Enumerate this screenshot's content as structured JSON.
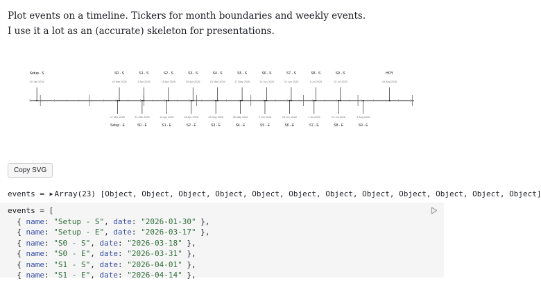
{
  "intro": {
    "line1": "Plot events on a timeline. Tickers for month boundaries and weekly events.",
    "line2": "I use it a lot as an (accurate) skeleton for presentations."
  },
  "timeline": {
    "start_date": "2026-01-26",
    "end_date": "2026-09-02",
    "events_above": [
      {
        "name": "Setup - S",
        "date": "2026-01-30",
        "date_label": "30 Jan 2026"
      },
      {
        "name": "S0 - S",
        "date": "2026-03-18",
        "date_label": "18 Mar 2026"
      },
      {
        "name": "S1 - S",
        "date": "2026-04-01",
        "date_label": "1 Apr 2026"
      },
      {
        "name": "S2 - S",
        "date": "2026-04-15",
        "date_label": "15 Apr 2026"
      },
      {
        "name": "S3 - S",
        "date": "2026-04-29",
        "date_label": "29 Apr 2026"
      },
      {
        "name": "S4 - S",
        "date": "2026-05-13",
        "date_label": "13 May 2026"
      },
      {
        "name": "S5 - S",
        "date": "2026-05-27",
        "date_label": "27 May 2026"
      },
      {
        "name": "S6 - S",
        "date": "2026-06-10",
        "date_label": "10 Jun 2026"
      },
      {
        "name": "S7 - S",
        "date": "2026-06-24",
        "date_label": "24 Jun 2026"
      },
      {
        "name": "S8 - S",
        "date": "2026-07-08",
        "date_label": "8 Jul 2026"
      },
      {
        "name": "S9 - S",
        "date": "2026-07-22",
        "date_label": "22 Jul 2026"
      },
      {
        "name": "HOY",
        "date": "2026-08-19",
        "date_label": "19 Aug 2026"
      }
    ],
    "events_below": [
      {
        "name": "Setup - E",
        "date": "2026-03-17",
        "date_label": "17 Mar 2026"
      },
      {
        "name": "S0 - E",
        "date": "2026-03-31",
        "date_label": "31 Mar 2026"
      },
      {
        "name": "S1 - E",
        "date": "2026-04-14",
        "date_label": "14 Apr 2026"
      },
      {
        "name": "S2 - E",
        "date": "2026-04-28",
        "date_label": "28 Apr 2026"
      },
      {
        "name": "S3 - E",
        "date": "2026-05-12",
        "date_label": "12 May 2026"
      },
      {
        "name": "S4 - E",
        "date": "2026-05-26",
        "date_label": "26 May 2026"
      },
      {
        "name": "S5 - E",
        "date": "2026-06-09",
        "date_label": "9 Jun 2026"
      },
      {
        "name": "S6 - E",
        "date": "2026-06-23",
        "date_label": "23 Jun 2026"
      },
      {
        "name": "S7 - E",
        "date": "2026-07-07",
        "date_label": "7 Jul 2026"
      },
      {
        "name": "S8 - E",
        "date": "2026-07-21",
        "date_label": "21 Jul 2026"
      },
      {
        "name": "S9 - E",
        "date": "2026-08-04",
        "date_label": "4 Aug 2026"
      }
    ]
  },
  "copy_button": {
    "label": "Copy SVG"
  },
  "summary": {
    "var_name": "events",
    "eq": " = ",
    "array_label": "Array(23)",
    "items_preview": " [Object, Object, Object, Object, Object, Object, Object, Object, Object, Object, Object, Object]"
  },
  "code": {
    "var_name": "events",
    "lines": [
      {
        "name": "Setup - S",
        "date": "2026-01-30"
      },
      {
        "name": "Setup - E",
        "date": "2026-03-17"
      },
      {
        "name": "S0 - S",
        "date": "2026-03-18"
      },
      {
        "name": "S0 - E",
        "date": "2026-03-31"
      },
      {
        "name": "S1 - S",
        "date": "2026-04-01"
      },
      {
        "name": "S1 - E",
        "date": "2026-04-14"
      }
    ]
  }
}
